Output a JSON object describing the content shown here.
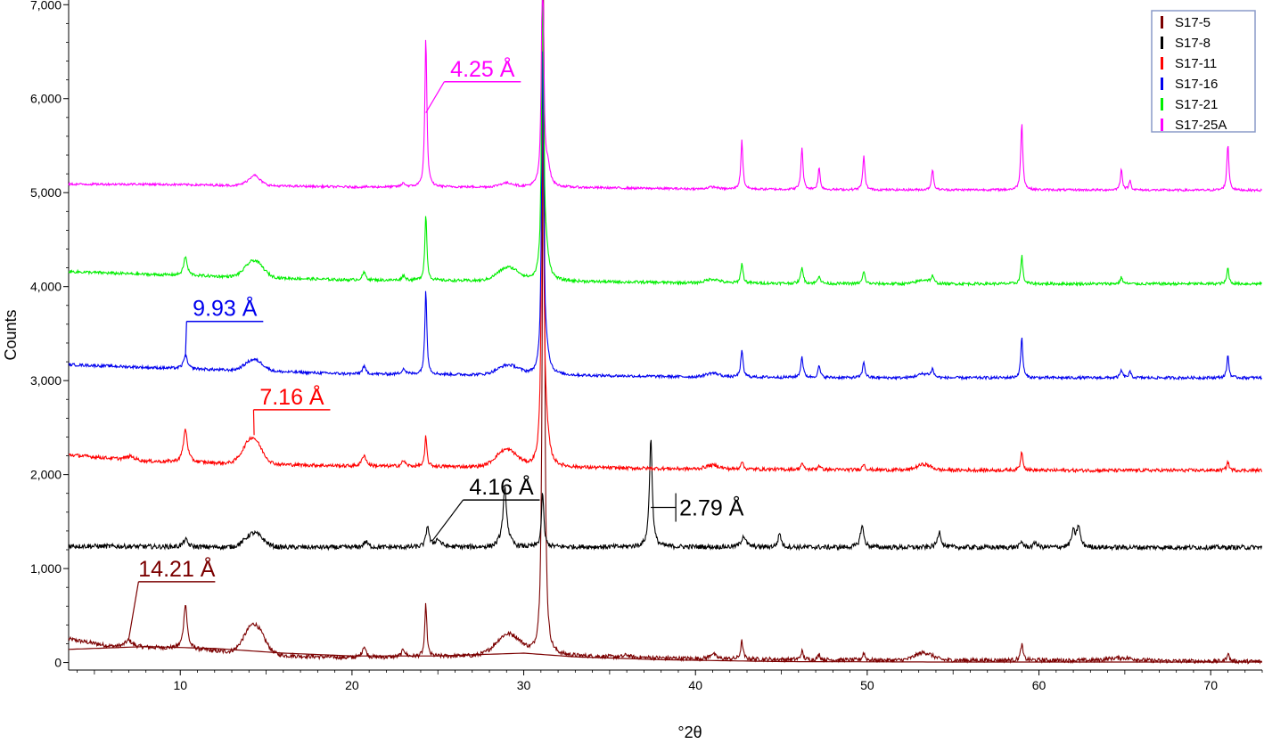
{
  "chart_data": {
    "type": "line",
    "xlabel": "°2θ",
    "ylabel": "Counts",
    "xlim": [
      3.5,
      73
    ],
    "ylim": [
      -80,
      7050
    ],
    "x_ticks": [
      10,
      20,
      30,
      40,
      50,
      60,
      70
    ],
    "y_ticks": [
      {
        "value": 0,
        "label": "0"
      },
      {
        "value": 1000,
        "label": "1,000"
      },
      {
        "value": 2000,
        "label": "2,000"
      },
      {
        "value": 3000,
        "label": "3,000"
      },
      {
        "value": 4000,
        "label": "4,000"
      },
      {
        "value": 5000,
        "label": "5,000"
      },
      {
        "value": 6000,
        "label": "6,000"
      },
      {
        "value": 7000,
        "label": "7,000"
      }
    ],
    "legend_position": "top-right",
    "series": [
      {
        "name": "S17-5",
        "color": "#7b0000",
        "offset": 0,
        "baseline": [
          [
            3.5,
            250
          ],
          [
            6,
            170
          ],
          [
            10,
            150
          ],
          [
            15,
            80
          ],
          [
            20,
            50
          ],
          [
            30,
            80
          ],
          [
            40,
            40
          ],
          [
            50,
            25
          ],
          [
            60,
            25
          ],
          [
            73,
            10
          ]
        ],
        "humps": [
          [
            14.3,
            0.55,
            320
          ],
          [
            29.1,
            0.7,
            220
          ],
          [
            53.3,
            0.5,
            80
          ],
          [
            64.8,
            0.8,
            30
          ]
        ],
        "peaks": [
          [
            7.0,
            0.25,
            70
          ],
          [
            10.3,
            0.12,
            480
          ],
          [
            20.7,
            0.13,
            120
          ],
          [
            23.0,
            0.12,
            80
          ],
          [
            24.3,
            0.07,
            560
          ],
          [
            31.15,
            0.07,
            7600
          ],
          [
            36.0,
            0.15,
            25
          ],
          [
            41.0,
            0.18,
            60
          ],
          [
            42.7,
            0.08,
            190
          ],
          [
            46.2,
            0.08,
            90
          ],
          [
            47.2,
            0.08,
            60
          ],
          [
            49.8,
            0.08,
            80
          ],
          [
            59.0,
            0.08,
            170
          ],
          [
            71.0,
            0.08,
            90
          ]
        ],
        "noise": 22,
        "baseline_curve": [
          [
            3.5,
            140
          ],
          [
            8,
            170
          ],
          [
            12,
            150
          ],
          [
            16,
            100
          ],
          [
            20,
            70
          ],
          [
            25,
            70
          ],
          [
            30,
            100
          ],
          [
            33,
            60
          ],
          [
            38,
            30
          ],
          [
            45,
            10
          ],
          [
            55,
            5
          ],
          [
            65,
            5
          ],
          [
            73,
            5
          ]
        ]
      },
      {
        "name": "S17-8",
        "color": "#000000",
        "offset": 1200,
        "baseline": [
          [
            3.5,
            40
          ],
          [
            10,
            30
          ],
          [
            20,
            25
          ],
          [
            30,
            30
          ],
          [
            40,
            30
          ],
          [
            50,
            25
          ],
          [
            60,
            25
          ],
          [
            73,
            25
          ]
        ],
        "humps": [
          [
            14.3,
            0.5,
            150
          ],
          [
            28.9,
            0.3,
            80
          ]
        ],
        "peaks": [
          [
            10.3,
            0.15,
            80
          ],
          [
            20.8,
            0.15,
            60
          ],
          [
            24.4,
            0.1,
            230
          ],
          [
            25.0,
            0.2,
            80
          ],
          [
            28.9,
            0.12,
            540
          ],
          [
            31.1,
            0.08,
            580
          ],
          [
            37.4,
            0.1,
            1150
          ],
          [
            42.8,
            0.15,
            120
          ],
          [
            44.9,
            0.1,
            150
          ],
          [
            49.7,
            0.12,
            230
          ],
          [
            54.2,
            0.12,
            170
          ],
          [
            59.0,
            0.1,
            60
          ],
          [
            59.8,
            0.1,
            60
          ],
          [
            62.0,
            0.12,
            160
          ],
          [
            62.3,
            0.12,
            220
          ]
        ],
        "noise": 25
      },
      {
        "name": "S17-11",
        "color": "#ff0000",
        "offset": 2030,
        "baseline": [
          [
            3.5,
            180
          ],
          [
            8,
            110
          ],
          [
            20,
            60
          ],
          [
            30,
            50
          ],
          [
            40,
            30
          ],
          [
            50,
            20
          ],
          [
            60,
            15
          ],
          [
            73,
            15
          ]
        ],
        "humps": [
          [
            14.2,
            0.5,
            280
          ],
          [
            29.0,
            0.6,
            180
          ],
          [
            53.3,
            0.4,
            60
          ],
          [
            41.0,
            0.4,
            40
          ]
        ],
        "peaks": [
          [
            7.1,
            0.3,
            40
          ],
          [
            10.3,
            0.14,
            350
          ],
          [
            20.7,
            0.14,
            120
          ],
          [
            23.0,
            0.12,
            60
          ],
          [
            24.3,
            0.07,
            320
          ],
          [
            31.1,
            0.08,
            3800
          ],
          [
            31.3,
            0.2,
            300
          ],
          [
            42.7,
            0.08,
            90
          ],
          [
            46.2,
            0.08,
            70
          ],
          [
            47.2,
            0.08,
            50
          ],
          [
            49.8,
            0.08,
            70
          ],
          [
            59.0,
            0.08,
            200
          ],
          [
            71.0,
            0.08,
            90
          ]
        ],
        "noise": 18
      },
      {
        "name": "S17-16",
        "color": "#0000ee",
        "offset": 3020,
        "baseline": [
          [
            3.5,
            150
          ],
          [
            8,
            120
          ],
          [
            20,
            50
          ],
          [
            30,
            40
          ],
          [
            40,
            20
          ],
          [
            50,
            10
          ],
          [
            60,
            10
          ],
          [
            73,
            10
          ]
        ],
        "humps": [
          [
            14.3,
            0.5,
            120
          ],
          [
            29.1,
            0.6,
            100
          ],
          [
            41.0,
            0.4,
            40
          ],
          [
            53.3,
            0.4,
            40
          ]
        ],
        "peaks": [
          [
            10.3,
            0.12,
            150
          ],
          [
            20.7,
            0.12,
            80
          ],
          [
            23.0,
            0.12,
            60
          ],
          [
            24.3,
            0.07,
            900
          ],
          [
            31.1,
            0.07,
            3500
          ],
          [
            31.3,
            0.2,
            200
          ],
          [
            42.7,
            0.08,
            280
          ],
          [
            46.2,
            0.08,
            220
          ],
          [
            47.2,
            0.08,
            120
          ],
          [
            49.8,
            0.08,
            170
          ],
          [
            53.8,
            0.08,
            80
          ],
          [
            59.0,
            0.07,
            430
          ],
          [
            64.8,
            0.08,
            80
          ],
          [
            65.3,
            0.08,
            60
          ],
          [
            71.0,
            0.07,
            240
          ]
        ],
        "noise": 15
      },
      {
        "name": "S17-21",
        "color": "#00ee00",
        "offset": 4020,
        "baseline": [
          [
            3.5,
            140
          ],
          [
            8,
            110
          ],
          [
            20,
            50
          ],
          [
            30,
            40
          ],
          [
            40,
            20
          ],
          [
            50,
            10
          ],
          [
            60,
            10
          ],
          [
            73,
            10
          ]
        ],
        "humps": [
          [
            14.3,
            0.5,
            180
          ],
          [
            29.1,
            0.6,
            140
          ],
          [
            41.0,
            0.4,
            40
          ],
          [
            53.3,
            0.4,
            40
          ]
        ],
        "peaks": [
          [
            10.3,
            0.12,
            200
          ],
          [
            20.7,
            0.12,
            80
          ],
          [
            23.0,
            0.12,
            50
          ],
          [
            24.3,
            0.07,
            700
          ],
          [
            31.1,
            0.07,
            3200
          ],
          [
            31.3,
            0.2,
            250
          ],
          [
            42.7,
            0.08,
            210
          ],
          [
            46.2,
            0.08,
            180
          ],
          [
            47.2,
            0.08,
            90
          ],
          [
            49.8,
            0.08,
            130
          ],
          [
            53.8,
            0.08,
            70
          ],
          [
            59.0,
            0.07,
            300
          ],
          [
            64.8,
            0.08,
            70
          ],
          [
            71.0,
            0.07,
            170
          ]
        ],
        "noise": 15
      },
      {
        "name": "S17-25A",
        "color": "#ff00ff",
        "offset": 5020,
        "baseline": [
          [
            3.5,
            70
          ],
          [
            8,
            70
          ],
          [
            20,
            40
          ],
          [
            30,
            40
          ],
          [
            40,
            20
          ],
          [
            50,
            10
          ],
          [
            60,
            10
          ],
          [
            73,
            5
          ]
        ],
        "humps": [
          [
            14.3,
            0.4,
            80
          ],
          [
            29.0,
            0.4,
            40
          ],
          [
            41.0,
            0.3,
            20
          ]
        ],
        "peaks": [
          [
            14.3,
            0.15,
            40
          ],
          [
            23.0,
            0.12,
            40
          ],
          [
            24.3,
            0.07,
            1600
          ],
          [
            31.1,
            0.07,
            2800
          ],
          [
            31.4,
            0.15,
            200
          ],
          [
            42.7,
            0.07,
            520
          ],
          [
            46.2,
            0.07,
            450
          ],
          [
            47.2,
            0.07,
            230
          ],
          [
            49.8,
            0.07,
            360
          ],
          [
            53.8,
            0.07,
            220
          ],
          [
            59.0,
            0.07,
            720
          ],
          [
            64.8,
            0.07,
            220
          ],
          [
            65.3,
            0.07,
            100
          ],
          [
            71.0,
            0.07,
            490
          ]
        ],
        "noise": 12
      }
    ],
    "annotations": [
      {
        "text": "4.25 Å",
        "color": "#ff00ff",
        "x": 24.3,
        "y": 5850,
        "label_x": 27.6,
        "label_y": 6180
      },
      {
        "text": "9.93 Å",
        "color": "#0000ee",
        "x": 10.3,
        "y": 3250,
        "label_x": 12.6,
        "label_y": 3630
      },
      {
        "text": "7.16 Å",
        "color": "#ff0000",
        "x": 14.3,
        "y": 2420,
        "label_x": 16.5,
        "label_y": 2690
      },
      {
        "text": "4.16 Å",
        "color": "#000000",
        "x": 24.7,
        "y": 1300,
        "label_x": 28.7,
        "label_y": 1730
      },
      {
        "text": "14.21 Å",
        "color": "#7b0000",
        "x": 7.0,
        "y": 250,
        "label_x": 9.8,
        "label_y": 860
      }
    ],
    "bracket_annotation": {
      "text": "2.79 Å",
      "color": "#000000",
      "x": 37.4,
      "y": 1650
    }
  }
}
